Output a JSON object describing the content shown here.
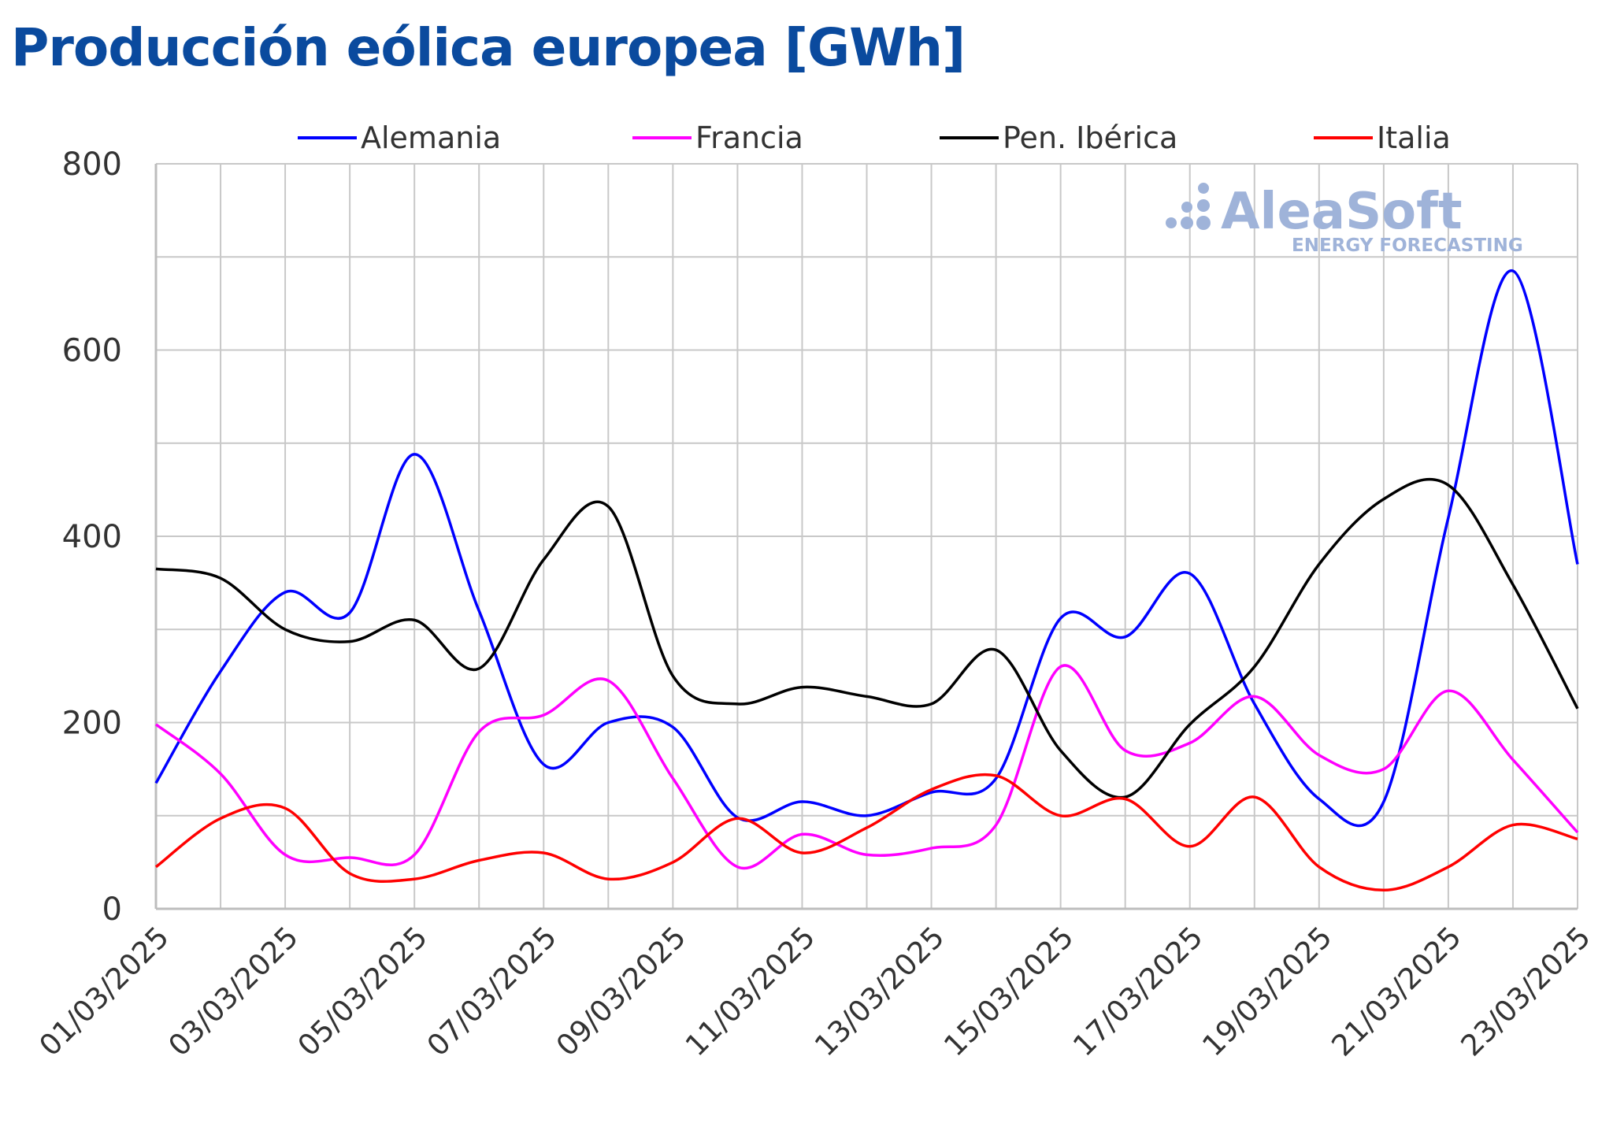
{
  "chart_data": {
    "type": "line",
    "title": "Producción eólica europea [GWh]",
    "xlabel": "",
    "ylabel": "",
    "ylim": [
      0,
      800
    ],
    "yticks": [
      0,
      200,
      400,
      600,
      800
    ],
    "grid": true,
    "legend_position": "top",
    "x": [
      "01/03/2025",
      "02/03/2025",
      "03/03/2025",
      "04/03/2025",
      "05/03/2025",
      "06/03/2025",
      "07/03/2025",
      "08/03/2025",
      "09/03/2025",
      "10/03/2025",
      "11/03/2025",
      "12/03/2025",
      "13/03/2025",
      "14/03/2025",
      "15/03/2025",
      "16/03/2025",
      "17/03/2025",
      "18/03/2025",
      "19/03/2025",
      "20/03/2025",
      "21/03/2025",
      "22/03/2025",
      "23/03/2025"
    ],
    "xtick_labels": [
      "01/03/2025",
      "03/03/2025",
      "05/03/2025",
      "07/03/2025",
      "09/03/2025",
      "11/03/2025",
      "13/03/2025",
      "15/03/2025",
      "17/03/2025",
      "19/03/2025",
      "21/03/2025",
      "23/03/2025"
    ],
    "series": [
      {
        "name": "Alemania",
        "color": "#0000ff",
        "values": [
          135,
          255,
          340,
          318,
          488,
          320,
          155,
          200,
          195,
          98,
          115,
          100,
          125,
          140,
          312,
          292,
          360,
          220,
          118,
          115,
          420,
          685,
          370
        ]
      },
      {
        "name": "Francia",
        "color": "#ff00ff",
        "values": [
          198,
          145,
          58,
          55,
          58,
          190,
          208,
          245,
          140,
          45,
          80,
          58,
          65,
          90,
          260,
          170,
          178,
          228,
          165,
          150,
          234,
          160,
          82
        ]
      },
      {
        "name": "Pen. Ibérica",
        "color": "#000000",
        "values": [
          365,
          355,
          300,
          287,
          310,
          258,
          375,
          432,
          250,
          220,
          238,
          228,
          220,
          278,
          170,
          120,
          198,
          260,
          370,
          440,
          455,
          348,
          215
        ]
      },
      {
        "name": "Italia",
        "color": "#ff0000",
        "values": [
          45,
          97,
          108,
          38,
          32,
          52,
          60,
          32,
          50,
          97,
          60,
          87,
          128,
          143,
          100,
          118,
          67,
          120,
          45,
          20,
          45,
          90,
          75
        ]
      }
    ]
  },
  "logo": {
    "name": "AleaSoft",
    "tagline": "ENERGY FORECASTING"
  }
}
